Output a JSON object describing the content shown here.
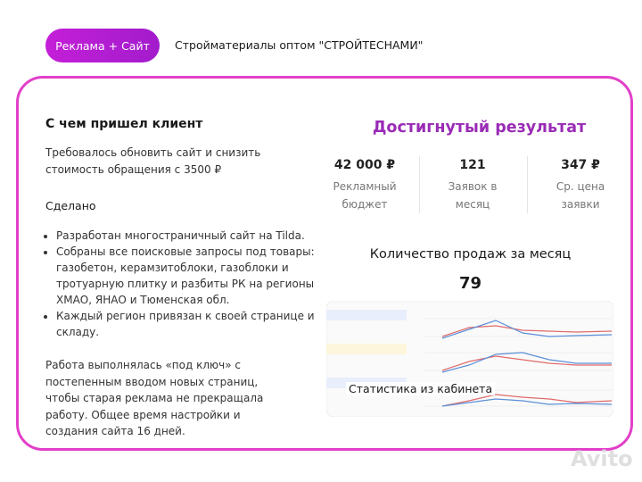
{
  "header": {
    "tag": "Реклама + Сайт",
    "title": "Стройматериалы оптом \"СТРОЙТЕСНАМИ\""
  },
  "left": {
    "heading": "С чем пришел клиент",
    "intro": "Требовалось обновить сайт и снизить стоимость обращения с 3500 ₽",
    "done_heading": "Сделано",
    "bullets": [
      "Разработан многостраничный сайт на Tilda.",
      "Собраны все поисковые запросы под товары: газобетон, керамзитоблоки, газоблоки и тротуарную плитку и разбиты РК на регионы ХМАО, ЯНАО и Тюменская обл.",
      "Каждый регион привязан к своей странице и складу."
    ],
    "outro": "Работа выполнялась «под ключ» с постепенным вводом новых страниц, чтобы старая реклама не прекращала работу. Общее время настройки и создания сайта 16 дней."
  },
  "right": {
    "heading": "Достигнутый результат",
    "stats": [
      {
        "value": "42 000 ₽",
        "label": "Рекламный бюджет"
      },
      {
        "value": "121",
        "label": "Заявок в месяц"
      },
      {
        "value": "347 ₽",
        "label": "Ср. цена заявки"
      }
    ],
    "sales_label": "Количество продаж за месяц",
    "sales_value": "79",
    "screenshot_caption": "Статистика из кабинета"
  },
  "watermark": "Avito"
}
